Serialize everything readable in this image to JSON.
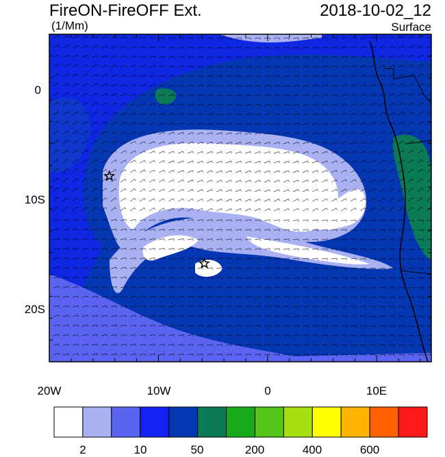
{
  "header": {
    "title": "FireON-FireOFF Ext.",
    "date": "2018-10-02_12",
    "units": "(1/Mm)",
    "level": "Surface"
  },
  "axes": {
    "lat_labels": [
      "0",
      "10S",
      "20S"
    ],
    "lon_labels": [
      "20W",
      "10W",
      "0",
      "10E"
    ],
    "lat_values": [
      0,
      -10,
      -20
    ],
    "lon_values": [
      -20,
      -10,
      0,
      10
    ],
    "lon_range": [
      -20,
      15
    ],
    "lat_range": [
      -25,
      5
    ]
  },
  "colorbar": {
    "colors": [
      "#ffffff",
      "#a9b1f2",
      "#5b64f0",
      "#1322f2",
      "#0537b3",
      "#0b7a57",
      "#1aab1a",
      "#55c619",
      "#a8df12",
      "#ffff00",
      "#ffb300",
      "#ff6000",
      "#ff1a1a"
    ],
    "labels": [
      "2",
      "10",
      "50",
      "200",
      "400",
      "600"
    ]
  },
  "markers": [
    {
      "name": "star-west",
      "lon": -14.5,
      "lat": -8
    },
    {
      "name": "star-center",
      "lon": -5.8,
      "lat": -16
    }
  ]
}
